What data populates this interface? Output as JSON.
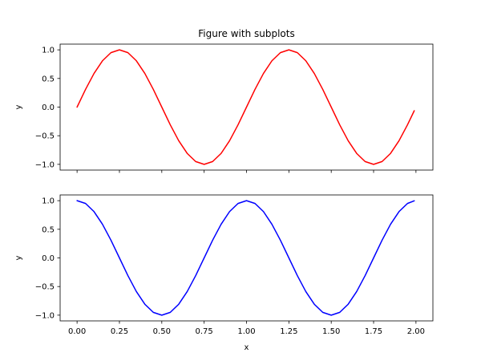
{
  "figure_title": "Figure with subplots",
  "chart_data": [
    {
      "type": "line",
      "title": "Figure with subplots",
      "xlabel": "",
      "ylabel": "y",
      "xlim": [
        -0.1,
        2.1
      ],
      "ylim": [
        -1.1,
        1.1
      ],
      "xticks": [
        0.0,
        0.25,
        0.5,
        0.75,
        1.0,
        1.25,
        1.5,
        1.75,
        2.0
      ],
      "xtick_labels": [],
      "yticks": [
        -1.0,
        -0.5,
        0.0,
        0.5,
        1.0
      ],
      "ytick_labels": [
        "−1.0",
        "−0.5",
        "0.0",
        "0.5",
        "1.0"
      ],
      "grid": false,
      "series": [
        {
          "color": "#ff0000",
          "x": [
            0.0,
            0.05,
            0.1,
            0.15,
            0.2,
            0.25,
            0.3,
            0.35,
            0.4,
            0.45,
            0.5,
            0.55,
            0.6,
            0.65,
            0.7,
            0.75,
            0.8,
            0.85,
            0.9,
            0.95,
            1.0,
            1.05,
            1.1,
            1.15,
            1.2,
            1.25,
            1.3,
            1.35,
            1.4,
            1.45,
            1.5,
            1.55,
            1.6,
            1.65,
            1.7,
            1.75,
            1.8,
            1.85,
            1.9,
            1.95,
            1.99
          ],
          "y": [
            0.0,
            0.309,
            0.588,
            0.809,
            0.951,
            1.0,
            0.951,
            0.809,
            0.588,
            0.309,
            0.0,
            -0.309,
            -0.588,
            -0.809,
            -0.951,
            -1.0,
            -0.951,
            -0.809,
            -0.588,
            -0.309,
            0.0,
            0.309,
            0.588,
            0.809,
            0.951,
            1.0,
            0.951,
            0.809,
            0.588,
            0.309,
            0.0,
            -0.309,
            -0.588,
            -0.809,
            -0.951,
            -1.0,
            -0.951,
            -0.809,
            -0.588,
            -0.309,
            -0.063
          ]
        }
      ]
    },
    {
      "type": "line",
      "title": "",
      "xlabel": "x",
      "ylabel": "y",
      "xlim": [
        -0.1,
        2.1
      ],
      "ylim": [
        -1.1,
        1.1
      ],
      "xticks": [
        0.0,
        0.25,
        0.5,
        0.75,
        1.0,
        1.25,
        1.5,
        1.75,
        2.0
      ],
      "xtick_labels": [
        "0.00",
        "0.25",
        "0.50",
        "0.75",
        "1.00",
        "1.25",
        "1.50",
        "1.75",
        "2.00"
      ],
      "yticks": [
        -1.0,
        -0.5,
        0.0,
        0.5,
        1.0
      ],
      "ytick_labels": [
        "−1.0",
        "−0.5",
        "0.0",
        "0.5",
        "1.0"
      ],
      "grid": false,
      "series": [
        {
          "color": "#0000ff",
          "x": [
            0.0,
            0.05,
            0.1,
            0.15,
            0.2,
            0.25,
            0.3,
            0.35,
            0.4,
            0.45,
            0.5,
            0.55,
            0.6,
            0.65,
            0.7,
            0.75,
            0.8,
            0.85,
            0.9,
            0.95,
            1.0,
            1.05,
            1.1,
            1.15,
            1.2,
            1.25,
            1.3,
            1.35,
            1.4,
            1.45,
            1.5,
            1.55,
            1.6,
            1.65,
            1.7,
            1.75,
            1.8,
            1.85,
            1.9,
            1.95,
            1.99
          ],
          "y": [
            1.0,
            0.951,
            0.809,
            0.588,
            0.309,
            0.0,
            -0.309,
            -0.588,
            -0.809,
            -0.951,
            -1.0,
            -0.951,
            -0.809,
            -0.588,
            -0.309,
            0.0,
            0.309,
            0.588,
            0.809,
            0.951,
            1.0,
            0.951,
            0.809,
            0.588,
            0.309,
            0.0,
            -0.309,
            -0.588,
            -0.809,
            -0.951,
            -1.0,
            -0.951,
            -0.809,
            -0.588,
            -0.309,
            0.0,
            0.309,
            0.588,
            0.809,
            0.951,
            0.998
          ]
        }
      ]
    }
  ]
}
